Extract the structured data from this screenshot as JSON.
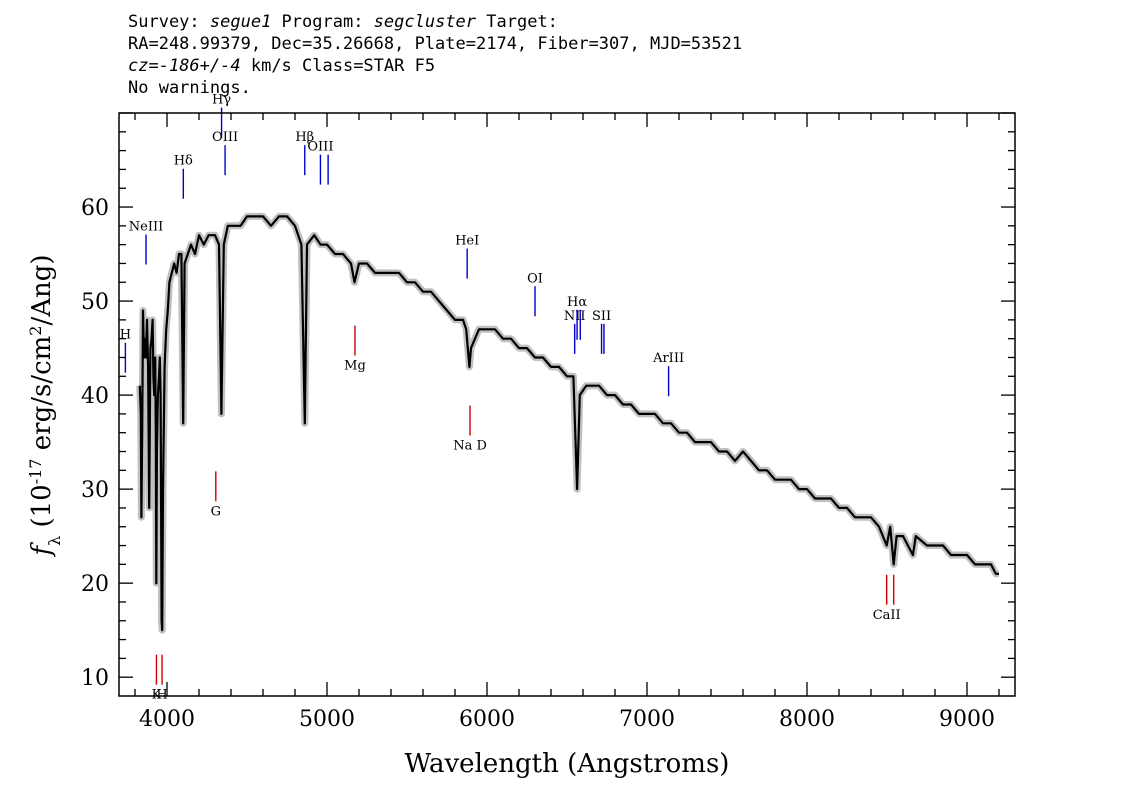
{
  "header": {
    "survey_prefix": "Survey: ",
    "survey": "segue1",
    "program_prefix": " Program: ",
    "program": "segcluster",
    "target_suffix": " Target:",
    "line2": "RA=248.99379, Dec=35.26668, Plate=2174, Fiber=307, MJD=53521",
    "cz_prefix": "cz=",
    "cz": "-186+/-4",
    "cz_suffix": " km/s Class=STAR F5",
    "line4": "No warnings."
  },
  "chart_data": {
    "type": "line",
    "xlabel": "Wavelength (Angstroms)",
    "ylabel": "f_λ (10^-17 erg/s/cm^2/Ang)",
    "xlim": [
      3700,
      9300
    ],
    "ylim": [
      8,
      70
    ],
    "x_ticks": [
      4000,
      5000,
      6000,
      7000,
      8000,
      9000
    ],
    "y_ticks": [
      10,
      20,
      30,
      40,
      50,
      60
    ],
    "series": [
      {
        "color": "#000000",
        "error_band_color": "#c0c0c0",
        "points": [
          [
            3830,
            41
          ],
          [
            3836,
            38
          ],
          [
            3840,
            27
          ],
          [
            3845,
            36
          ],
          [
            3850,
            49
          ],
          [
            3856,
            44
          ],
          [
            3862,
            46
          ],
          [
            3868,
            44
          ],
          [
            3875,
            48
          ],
          [
            3882,
            43
          ],
          [
            3889,
            28
          ],
          [
            3896,
            45
          ],
          [
            3903,
            46
          ],
          [
            3910,
            48
          ],
          [
            3915,
            42
          ],
          [
            3920,
            40
          ],
          [
            3926,
            44
          ],
          [
            3930,
            36
          ],
          [
            3933,
            20
          ],
          [
            3937,
            34
          ],
          [
            3943,
            40
          ],
          [
            3950,
            42
          ],
          [
            3955,
            44
          ],
          [
            3960,
            40
          ],
          [
            3966,
            16
          ],
          [
            3970,
            15
          ],
          [
            3975,
            30
          ],
          [
            3985,
            43
          ],
          [
            3995,
            47
          ],
          [
            4005,
            49
          ],
          [
            4015,
            52
          ],
          [
            4030,
            53
          ],
          [
            4045,
            54
          ],
          [
            4060,
            53
          ],
          [
            4075,
            55
          ],
          [
            4090,
            55
          ],
          [
            4101,
            37
          ],
          [
            4110,
            54
          ],
          [
            4130,
            55
          ],
          [
            4150,
            56
          ],
          [
            4175,
            55
          ],
          [
            4200,
            57
          ],
          [
            4230,
            56
          ],
          [
            4260,
            57
          ],
          [
            4300,
            57
          ],
          [
            4325,
            56
          ],
          [
            4340,
            38
          ],
          [
            4355,
            56
          ],
          [
            4380,
            58
          ],
          [
            4420,
            58
          ],
          [
            4460,
            58
          ],
          [
            4500,
            59
          ],
          [
            4550,
            59
          ],
          [
            4600,
            59
          ],
          [
            4650,
            58
          ],
          [
            4700,
            59
          ],
          [
            4750,
            59
          ],
          [
            4800,
            58
          ],
          [
            4840,
            56
          ],
          [
            4861,
            37
          ],
          [
            4875,
            56
          ],
          [
            4920,
            57
          ],
          [
            4960,
            56
          ],
          [
            5000,
            56
          ],
          [
            5050,
            55
          ],
          [
            5100,
            55
          ],
          [
            5150,
            54
          ],
          [
            5172,
            52
          ],
          [
            5200,
            54
          ],
          [
            5250,
            54
          ],
          [
            5300,
            53
          ],
          [
            5350,
            53
          ],
          [
            5400,
            53
          ],
          [
            5450,
            53
          ],
          [
            5500,
            52
          ],
          [
            5550,
            52
          ],
          [
            5600,
            51
          ],
          [
            5650,
            51
          ],
          [
            5700,
            50
          ],
          [
            5750,
            49
          ],
          [
            5800,
            48
          ],
          [
            5850,
            48
          ],
          [
            5870,
            47
          ],
          [
            5890,
            43
          ],
          [
            5900,
            45
          ],
          [
            5950,
            47
          ],
          [
            6000,
            47
          ],
          [
            6050,
            47
          ],
          [
            6100,
            46
          ],
          [
            6150,
            46
          ],
          [
            6200,
            45
          ],
          [
            6250,
            45
          ],
          [
            6300,
            44
          ],
          [
            6350,
            44
          ],
          [
            6400,
            43
          ],
          [
            6450,
            43
          ],
          [
            6500,
            42
          ],
          [
            6540,
            42
          ],
          [
            6563,
            30
          ],
          [
            6580,
            40
          ],
          [
            6620,
            41
          ],
          [
            6650,
            41
          ],
          [
            6700,
            41
          ],
          [
            6750,
            40
          ],
          [
            6800,
            40
          ],
          [
            6850,
            39
          ],
          [
            6900,
            39
          ],
          [
            6950,
            38
          ],
          [
            7000,
            38
          ],
          [
            7050,
            38
          ],
          [
            7100,
            37
          ],
          [
            7150,
            37
          ],
          [
            7200,
            36
          ],
          [
            7250,
            36
          ],
          [
            7300,
            35
          ],
          [
            7350,
            35
          ],
          [
            7400,
            35
          ],
          [
            7450,
            34
          ],
          [
            7500,
            34
          ],
          [
            7550,
            33
          ],
          [
            7600,
            34
          ],
          [
            7650,
            33
          ],
          [
            7700,
            32
          ],
          [
            7750,
            32
          ],
          [
            7800,
            31
          ],
          [
            7850,
            31
          ],
          [
            7900,
            31
          ],
          [
            7950,
            30
          ],
          [
            8000,
            30
          ],
          [
            8050,
            29
          ],
          [
            8100,
            29
          ],
          [
            8150,
            29
          ],
          [
            8200,
            28
          ],
          [
            8250,
            28
          ],
          [
            8300,
            27
          ],
          [
            8350,
            27
          ],
          [
            8400,
            27
          ],
          [
            8450,
            26
          ],
          [
            8498,
            24
          ],
          [
            8520,
            26
          ],
          [
            8542,
            22
          ],
          [
            8560,
            25
          ],
          [
            8600,
            25
          ],
          [
            8662,
            23
          ],
          [
            8680,
            25
          ],
          [
            8750,
            24
          ],
          [
            8800,
            24
          ],
          [
            8850,
            24
          ],
          [
            8900,
            23
          ],
          [
            8950,
            23
          ],
          [
            9000,
            23
          ],
          [
            9050,
            22
          ],
          [
            9100,
            22
          ],
          [
            9150,
            22
          ],
          [
            9180,
            21
          ],
          [
            9200,
            21
          ]
        ]
      }
    ],
    "emission_lines": {
      "color": "#0000cc",
      "items": [
        {
          "label": "H",
          "wavelength": 3740,
          "label_y": 46
        },
        {
          "label": "NeIII",
          "wavelength": 3869,
          "label_y": 57.5
        },
        {
          "label": "Hδ",
          "wavelength": 4102,
          "label_y": 64.5
        },
        {
          "label": "Hγ",
          "wavelength": 4341,
          "label_y": 71
        },
        {
          "label": "OIII",
          "wavelength": 4363,
          "label_y": 67
        },
        {
          "label": "Hβ",
          "wavelength": 4861,
          "label_y": 67
        },
        {
          "label": "OIII",
          "wavelength": 4959,
          "label_y": 66
        },
        {
          "wavelength": 5007
        },
        {
          "label": "HeI",
          "wavelength": 5876,
          "label_y": 56
        },
        {
          "label": "OI",
          "wavelength": 6300,
          "label_y": 52
        },
        {
          "label": "NII",
          "wavelength": 6548,
          "label_y": 48
        },
        {
          "label": "Hα",
          "wavelength": 6563,
          "label_y": 49.5
        },
        {
          "wavelength": 6583
        },
        {
          "label": "SII",
          "wavelength": 6716,
          "label_y": 48
        },
        {
          "wavelength": 6731
        },
        {
          "label": "ArIII",
          "wavelength": 7135,
          "label_y": 43.5
        }
      ]
    },
    "absorption_lines": {
      "color": "#cc0000",
      "items": [
        {
          "label": "K",
          "wavelength": 3934,
          "label_y": 7.5
        },
        {
          "label": "H",
          "wavelength": 3969,
          "label_y": 7.5
        },
        {
          "label": "G",
          "wavelength": 4305,
          "label_y": 27
        },
        {
          "label": "Mg",
          "wavelength": 5175,
          "label_y": 42.5
        },
        {
          "label": "Na D",
          "wavelength": 5894,
          "label_y": 34
        },
        {
          "label": "CaII",
          "wavelength": 8498,
          "label_y": 16
        },
        {
          "wavelength": 8542
        },
        {
          "wavelength": 8662
        }
      ]
    }
  }
}
